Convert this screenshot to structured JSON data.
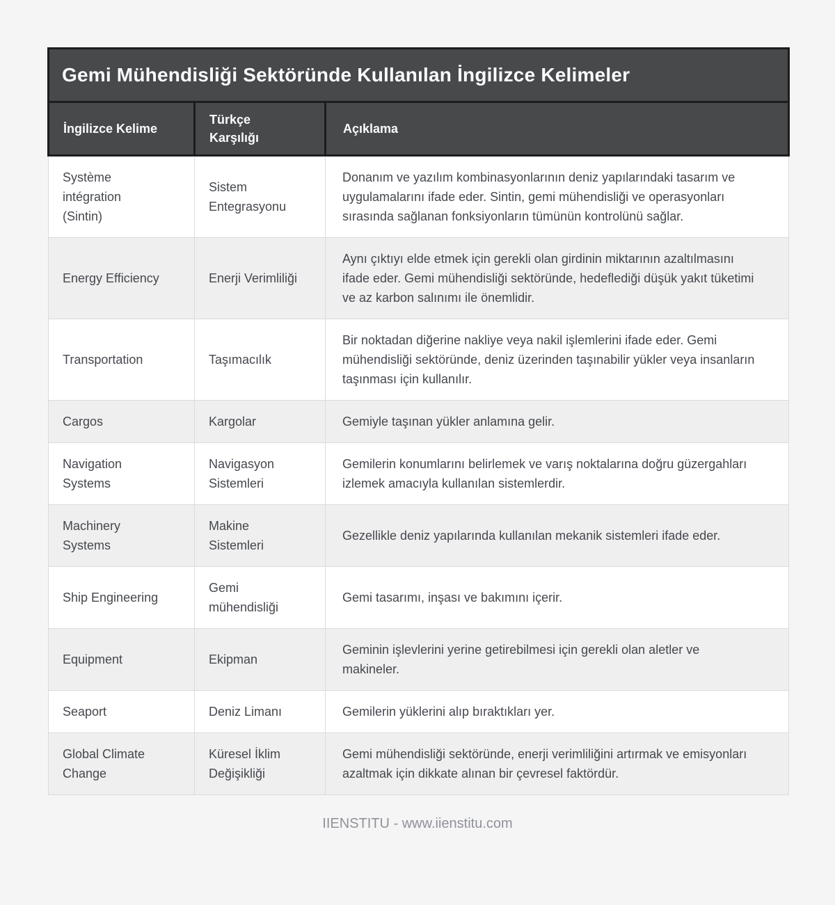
{
  "page": {
    "title": "Gemi Mühendisliği Sektöründe Kullanılan İngilizce Kelimeler",
    "footer": "IIENSTITU - www.iienstitu.com"
  },
  "colors": {
    "page_background": "#f5f5f6",
    "header_background": "#48494b",
    "header_border": "#1c1d1f",
    "header_text": "#fafafa",
    "row_alt_background": "#efefef",
    "body_text": "#45484e",
    "cell_border": "#dadbdc",
    "footer_text": "#8f9298"
  },
  "table": {
    "columns": [
      {
        "key": "english",
        "label": "İngilizce Kelime"
      },
      {
        "key": "turkish",
        "label": "Türkçe\nKarşılığı"
      },
      {
        "key": "description",
        "label": "Açıklama"
      }
    ],
    "rows": [
      {
        "english": "Système\nintégration\n(Sintin)",
        "turkish": "Sistem\nEntegrasyonu",
        "description": "Donanım ve yazılım kombinasyonlarının deniz yapılarındaki tasarım ve uygulamalarını ifade eder. Sintin, gemi mühendisliği ve operasyonları sırasında sağlanan fonksiyonların tümünün kontrolünü sağlar."
      },
      {
        "english": "Energy Efficiency",
        "turkish": "Enerji Verimliliği",
        "description": "Aynı çıktıyı elde etmek için gerekli olan girdinin miktarının azaltılmasını ifade eder. Gemi mühendisliği sektöründe, hedeflediği düşük yakıt tüketimi ve az karbon salınımı ile önemlidir."
      },
      {
        "english": "Transportation",
        "turkish": "Taşımacılık",
        "description": "Bir noktadan diğerine nakliye veya nakil işlemlerini ifade eder. Gemi mühendisliği sektöründe, deniz üzerinden taşınabilir yükler veya insanların taşınması için kullanılır."
      },
      {
        "english": "Cargos",
        "turkish": "Kargolar",
        "description": "Gemiyle taşınan yükler anlamına gelir."
      },
      {
        "english": "Navigation\nSystems",
        "turkish": "Navigasyon\nSistemleri",
        "description": "Gemilerin konumlarını belirlemek ve varış noktalarına doğru güzergahları izlemek amacıyla kullanılan sistemlerdir."
      },
      {
        "english": "Machinery\nSystems",
        "turkish": "Makine\nSistemleri",
        "description": "Gezellikle deniz yapılarında kullanılan mekanik sistemleri ifade eder."
      },
      {
        "english": "Ship Engineering",
        "turkish": "Gemi\nmühendisliği",
        "description": "Gemi tasarımı, inşası ve bakımını içerir."
      },
      {
        "english": "Equipment",
        "turkish": "Ekipman",
        "description": "Geminin işlevlerini yerine getirebilmesi için gerekli olan aletler ve makineler."
      },
      {
        "english": "Seaport",
        "turkish": "Deniz Limanı",
        "description": "Gemilerin yüklerini alıp bıraktıkları yer."
      },
      {
        "english": "Global Climate\nChange",
        "turkish": "Küresel İklim\nDeğişikliği",
        "description": "Gemi mühendisliği sektöründe, enerji verimliliğini artırmak ve emisyonları azaltmak için dikkate alınan bir çevresel faktördür."
      }
    ]
  }
}
